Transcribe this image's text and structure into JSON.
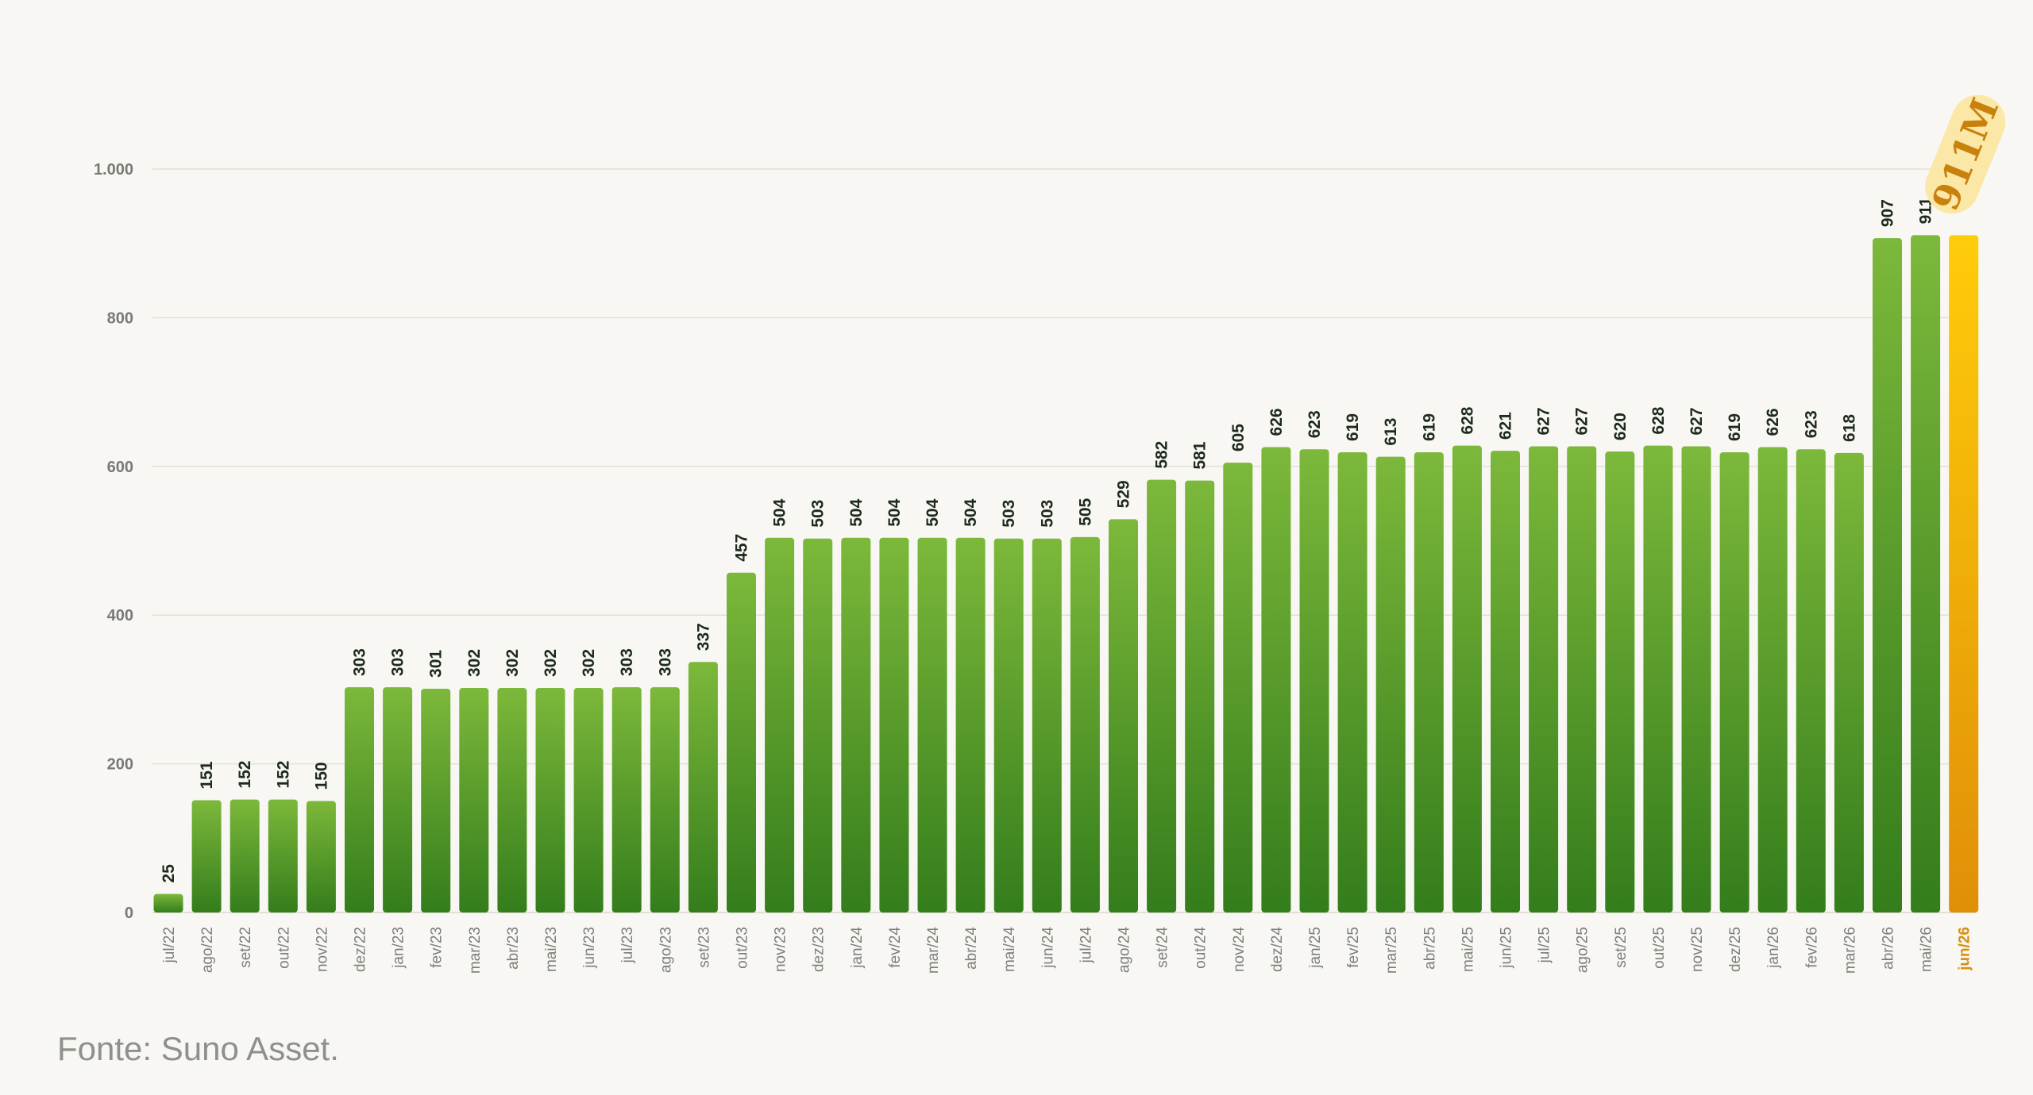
{
  "chart_data": {
    "type": "bar",
    "categories": [
      "jul/22",
      "ago/22",
      "set/22",
      "out/22",
      "nov/22",
      "dez/22",
      "jan/23",
      "fev/23",
      "mar/23",
      "abr/23",
      "mai/23",
      "jun/23",
      "jul/23",
      "ago/23",
      "set/23",
      "out/23",
      "nov/23",
      "dez/23",
      "jan/24",
      "fev/24",
      "mar/24",
      "abr/24",
      "mai/24",
      "jun/24",
      "jul/24",
      "ago/24",
      "set/24",
      "out/24",
      "nov/24",
      "dez/24",
      "jan/25",
      "fev/25",
      "mar/25",
      "abr/25",
      "mai/25",
      "jun/25",
      "jul/25",
      "ago/25",
      "set/25",
      "out/25",
      "nov/25",
      "dez/25",
      "jan/26",
      "fev/26",
      "mar/26",
      "abr/26",
      "mai/26",
      "jun/26"
    ],
    "values": [
      25,
      151,
      152,
      152,
      150,
      303,
      303,
      301,
      302,
      302,
      302,
      302,
      303,
      303,
      337,
      457,
      504,
      503,
      504,
      504,
      504,
      504,
      503,
      503,
      505,
      529,
      582,
      581,
      605,
      626,
      623,
      619,
      613,
      619,
      628,
      621,
      627,
      627,
      620,
      628,
      627,
      619,
      626,
      623,
      618,
      907,
      911,
      911
    ],
    "data_labels": [
      "25",
      "151",
      "152",
      "152",
      "150",
      "303",
      "303",
      "301",
      "302",
      "302",
      "302",
      "302",
      "303",
      "303",
      "337",
      "457",
      "504",
      "503",
      "504",
      "504",
      "504",
      "504",
      "503",
      "503",
      "505",
      "529",
      "582",
      "581",
      "605",
      "626",
      "623",
      "619",
      "613",
      "619",
      "628",
      "621",
      "627",
      "627",
      "620",
      "628",
      "627",
      "619",
      "626",
      "623",
      "618",
      "907",
      "911",
      ""
    ],
    "yticks": [
      0,
      200,
      400,
      600,
      800,
      1000
    ],
    "ytick_labels": [
      "0",
      "200",
      "400",
      "600",
      "800",
      "1.000"
    ],
    "ylim": [
      0,
      1000
    ],
    "highlight_index": 47,
    "callout_label": "911M",
    "grid": true,
    "colors": {
      "bar_top": "#7cb83a",
      "bar_bottom": "#347d1c",
      "highlight_top": "#ffcc0a",
      "highlight_bottom": "#e08f07",
      "callout_bg": "#fbe7a6",
      "callout_text": "#c9810d"
    }
  },
  "source_note": "Fonte: Suno Asset."
}
